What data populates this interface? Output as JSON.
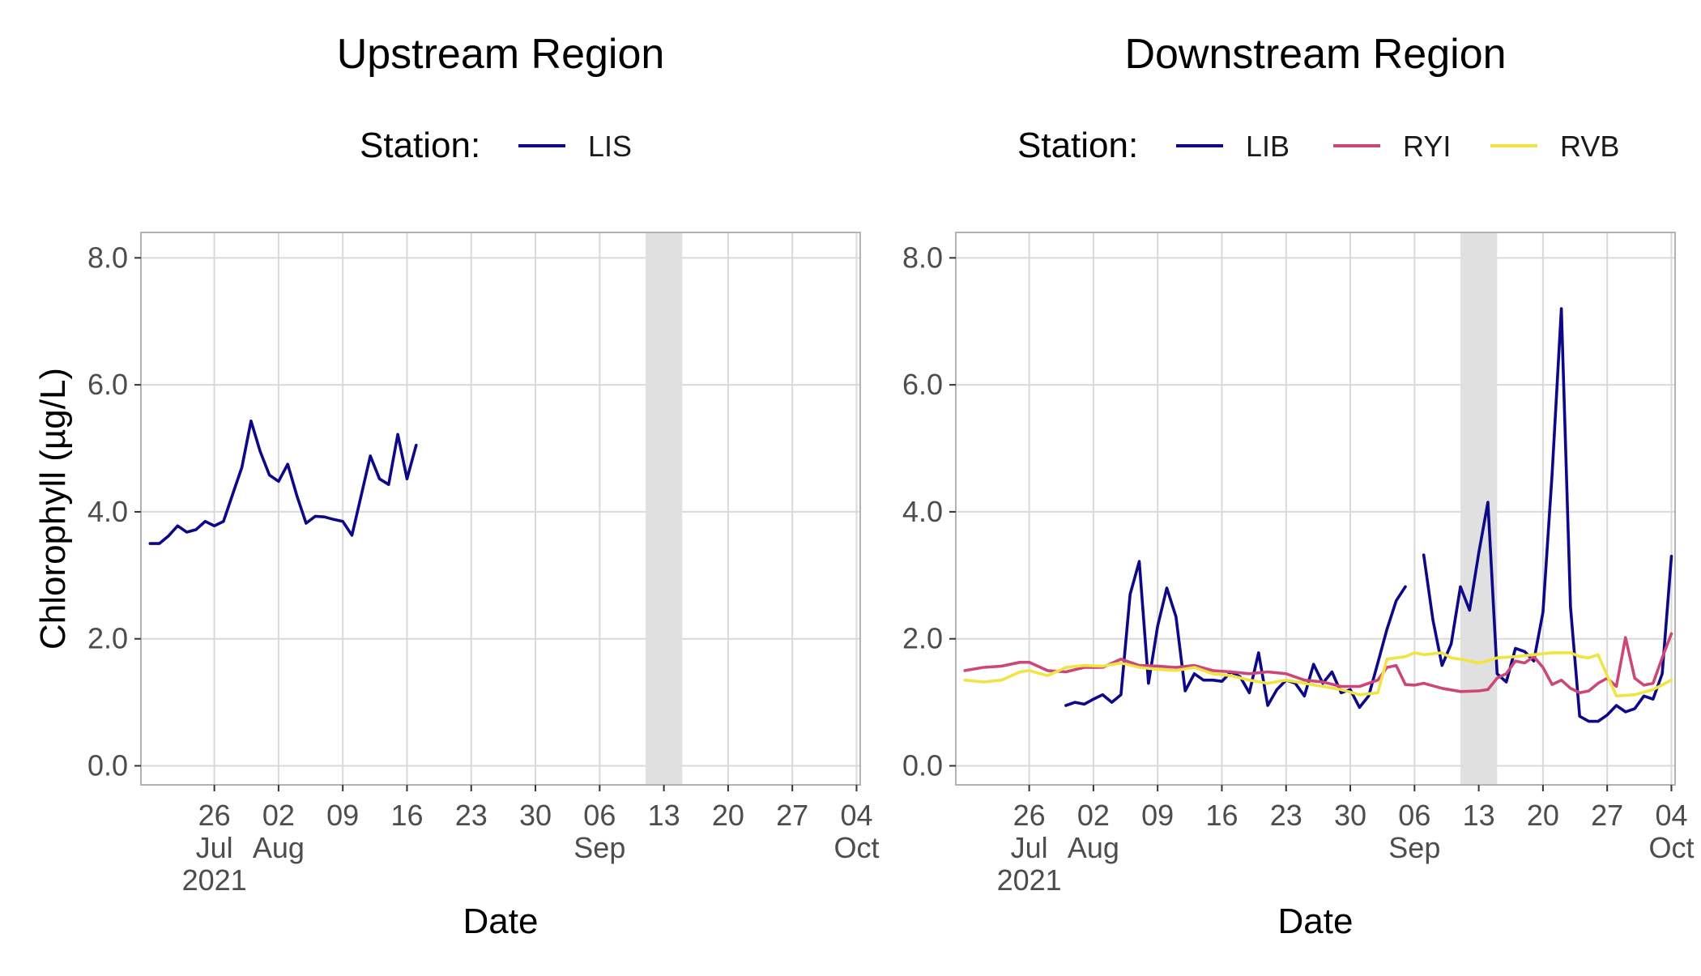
{
  "colors": {
    "LIS": "#0d0887",
    "LIB": "#0d0887",
    "RYI": "#cc4778",
    "RVB": "#f0e442",
    "shade": "#e0e0e0",
    "grid": "#d9d9d9",
    "border": "#b3b3b3"
  },
  "legend_title": "Station:",
  "shared": {
    "ylabel": "Chlorophyll (µg/L)",
    "xlabel": "Date",
    "y_ticks": [
      "0.0",
      "2.0",
      "4.0",
      "6.0",
      "8.0"
    ],
    "x_ticks": [
      {
        "day": "26",
        "month": "Jul",
        "year": "2021"
      },
      {
        "day": "02",
        "month": "Aug",
        "year": ""
      },
      {
        "day": "09",
        "month": "",
        "year": ""
      },
      {
        "day": "16",
        "month": "",
        "year": ""
      },
      {
        "day": "23",
        "month": "",
        "year": ""
      },
      {
        "day": "30",
        "month": "",
        "year": ""
      },
      {
        "day": "06",
        "month": "Sep",
        "year": ""
      },
      {
        "day": "13",
        "month": "",
        "year": ""
      },
      {
        "day": "20",
        "month": "",
        "year": ""
      },
      {
        "day": "27",
        "month": "",
        "year": ""
      },
      {
        "day": "04",
        "month": "Oct",
        "year": ""
      }
    ]
  },
  "chart_data": [
    {
      "type": "line",
      "title": "Upstream Region",
      "xlabel": "Date",
      "ylabel": "Chlorophyll (µg/L)",
      "xlim": [
        "2021-07-18",
        "2021-10-04"
      ],
      "ylim": [
        -0.3,
        8.4
      ],
      "shaded_range": [
        "2021-09-11",
        "2021-09-15"
      ],
      "grid": true,
      "legend_position": "top",
      "series": [
        {
          "name": "LIS",
          "color": "#0d0887",
          "points": [
            [
              "2021-07-19",
              3.5
            ],
            [
              "2021-07-20",
              3.5
            ],
            [
              "2021-07-21",
              3.62
            ],
            [
              "2021-07-22",
              3.78
            ],
            [
              "2021-07-23",
              3.68
            ],
            [
              "2021-07-24",
              3.72
            ],
            [
              "2021-07-25",
              3.85
            ],
            [
              "2021-07-26",
              3.78
            ],
            [
              "2021-07-27",
              3.85
            ],
            [
              "2021-07-28",
              4.28
            ],
            [
              "2021-07-29",
              4.7
            ],
            [
              "2021-07-30",
              5.43
            ],
            [
              "2021-07-31",
              4.95
            ],
            [
              "2021-08-01",
              4.58
            ],
            [
              "2021-08-02",
              4.48
            ],
            [
              "2021-08-03",
              4.75
            ],
            [
              "2021-08-04",
              4.25
            ],
            [
              "2021-08-05",
              3.82
            ],
            [
              "2021-08-06",
              3.93
            ],
            [
              "2021-08-07",
              3.92
            ],
            [
              "2021-08-08",
              3.88
            ],
            [
              "2021-08-09",
              3.85
            ],
            [
              "2021-08-10",
              3.63
            ],
            [
              "2021-08-11",
              4.25
            ],
            [
              "2021-08-12",
              4.88
            ],
            [
              "2021-08-13",
              4.52
            ],
            [
              "2021-08-14",
              4.43
            ],
            [
              "2021-08-15",
              5.22
            ],
            [
              "2021-08-16",
              4.52
            ],
            [
              "2021-08-17",
              5.05
            ]
          ]
        }
      ]
    },
    {
      "type": "line",
      "title": "Downstream Region",
      "xlabel": "Date",
      "ylabel": "",
      "xlim": [
        "2021-07-18",
        "2021-10-04"
      ],
      "ylim": [
        -0.3,
        8.4
      ],
      "shaded_range": [
        "2021-09-11",
        "2021-09-15"
      ],
      "grid": true,
      "legend_position": "top",
      "series": [
        {
          "name": "LIB",
          "color": "#0d0887",
          "segments": [
            [
              [
                "2021-07-30",
                0.95
              ],
              [
                "2021-07-31",
                1.0
              ],
              [
                "2021-08-01",
                0.97
              ],
              [
                "2021-08-02",
                1.05
              ],
              [
                "2021-08-03",
                1.12
              ],
              [
                "2021-08-04",
                1.0
              ],
              [
                "2021-08-05",
                1.12
              ],
              [
                "2021-08-06",
                2.7
              ],
              [
                "2021-08-07",
                3.22
              ],
              [
                "2021-08-08",
                1.3
              ],
              [
                "2021-08-09",
                2.2
              ],
              [
                "2021-08-10",
                2.8
              ],
              [
                "2021-08-11",
                2.35
              ],
              [
                "2021-08-12",
                1.18
              ],
              [
                "2021-08-13",
                1.45
              ],
              [
                "2021-08-14",
                1.35
              ],
              [
                "2021-08-15",
                1.35
              ],
              [
                "2021-08-16",
                1.33
              ],
              [
                "2021-08-17",
                1.48
              ],
              [
                "2021-08-18",
                1.4
              ],
              [
                "2021-08-19",
                1.15
              ],
              [
                "2021-08-20",
                1.78
              ],
              [
                "2021-08-21",
                0.95
              ],
              [
                "2021-08-22",
                1.2
              ],
              [
                "2021-08-23",
                1.35
              ],
              [
                "2021-08-24",
                1.3
              ],
              [
                "2021-08-25",
                1.1
              ],
              [
                "2021-08-26",
                1.6
              ],
              [
                "2021-08-27",
                1.3
              ],
              [
                "2021-08-28",
                1.48
              ],
              [
                "2021-08-29",
                1.15
              ],
              [
                "2021-08-30",
                1.2
              ],
              [
                "2021-08-31",
                0.92
              ],
              [
                "2021-09-01",
                1.1
              ],
              [
                "2021-09-02",
                1.62
              ],
              [
                "2021-09-03",
                2.15
              ],
              [
                "2021-09-04",
                2.6
              ],
              [
                "2021-09-05",
                2.82
              ]
            ],
            [
              [
                "2021-09-07",
                3.32
              ],
              [
                "2021-09-08",
                2.3
              ],
              [
                "2021-09-09",
                1.58
              ],
              [
                "2021-09-10",
                1.92
              ],
              [
                "2021-09-11",
                2.82
              ],
              [
                "2021-09-12",
                2.45
              ],
              [
                "2021-09-13",
                3.35
              ],
              [
                "2021-09-14",
                4.15
              ],
              [
                "2021-09-15",
                1.45
              ],
              [
                "2021-09-16",
                1.32
              ],
              [
                "2021-09-17",
                1.85
              ],
              [
                "2021-09-18",
                1.8
              ],
              [
                "2021-09-19",
                1.65
              ],
              [
                "2021-09-20",
                2.42
              ],
              [
                "2021-09-21",
                4.6
              ],
              [
                "2021-09-22",
                7.2
              ],
              [
                "2021-09-23",
                2.5
              ],
              [
                "2021-09-24",
                0.78
              ],
              [
                "2021-09-25",
                0.7
              ],
              [
                "2021-09-26",
                0.7
              ],
              [
                "2021-09-27",
                0.8
              ],
              [
                "2021-09-28",
                0.95
              ],
              [
                "2021-09-29",
                0.85
              ],
              [
                "2021-09-30",
                0.9
              ],
              [
                "2021-10-01",
                1.1
              ],
              [
                "2021-10-02",
                1.05
              ],
              [
                "2021-10-03",
                1.45
              ],
              [
                "2021-10-04",
                3.3
              ]
            ]
          ]
        },
        {
          "name": "RYI",
          "color": "#cc4778",
          "points": [
            [
              "2021-07-19",
              1.5
            ],
            [
              "2021-07-21",
              1.55
            ],
            [
              "2021-07-23",
              1.57
            ],
            [
              "2021-07-25",
              1.63
            ],
            [
              "2021-07-26",
              1.63
            ],
            [
              "2021-07-28",
              1.5
            ],
            [
              "2021-07-30",
              1.48
            ],
            [
              "2021-08-01",
              1.55
            ],
            [
              "2021-08-03",
              1.55
            ],
            [
              "2021-08-05",
              1.68
            ],
            [
              "2021-08-07",
              1.58
            ],
            [
              "2021-08-09",
              1.57
            ],
            [
              "2021-08-11",
              1.55
            ],
            [
              "2021-08-13",
              1.58
            ],
            [
              "2021-08-15",
              1.5
            ],
            [
              "2021-08-17",
              1.48
            ],
            [
              "2021-08-19",
              1.45
            ],
            [
              "2021-08-21",
              1.48
            ],
            [
              "2021-08-23",
              1.45
            ],
            [
              "2021-08-25",
              1.35
            ],
            [
              "2021-08-27",
              1.32
            ],
            [
              "2021-08-29",
              1.25
            ],
            [
              "2021-08-31",
              1.25
            ],
            [
              "2021-09-02",
              1.35
            ],
            [
              "2021-09-03",
              1.55
            ],
            [
              "2021-09-04",
              1.58
            ],
            [
              "2021-09-05",
              1.28
            ],
            [
              "2021-09-06",
              1.27
            ],
            [
              "2021-09-07",
              1.3
            ],
            [
              "2021-09-09",
              1.22
            ],
            [
              "2021-09-11",
              1.17
            ],
            [
              "2021-09-13",
              1.18
            ],
            [
              "2021-09-14",
              1.2
            ],
            [
              "2021-09-15",
              1.38
            ],
            [
              "2021-09-16",
              1.45
            ],
            [
              "2021-09-17",
              1.65
            ],
            [
              "2021-09-18",
              1.62
            ],
            [
              "2021-09-19",
              1.72
            ],
            [
              "2021-09-20",
              1.55
            ],
            [
              "2021-09-21",
              1.28
            ],
            [
              "2021-09-22",
              1.35
            ],
            [
              "2021-09-23",
              1.22
            ],
            [
              "2021-09-24",
              1.15
            ],
            [
              "2021-09-25",
              1.18
            ],
            [
              "2021-09-26",
              1.3
            ],
            [
              "2021-09-27",
              1.38
            ],
            [
              "2021-09-28",
              1.25
            ],
            [
              "2021-09-29",
              2.02
            ],
            [
              "2021-09-30",
              1.38
            ],
            [
              "2021-10-01",
              1.27
            ],
            [
              "2021-10-02",
              1.3
            ],
            [
              "2021-10-03",
              1.7
            ],
            [
              "2021-10-04",
              2.08
            ]
          ]
        },
        {
          "name": "RVB",
          "color": "#f0e442",
          "points": [
            [
              "2021-07-19",
              1.35
            ],
            [
              "2021-07-21",
              1.32
            ],
            [
              "2021-07-23",
              1.35
            ],
            [
              "2021-07-25",
              1.48
            ],
            [
              "2021-07-26",
              1.5
            ],
            [
              "2021-07-28",
              1.42
            ],
            [
              "2021-07-30",
              1.55
            ],
            [
              "2021-08-01",
              1.58
            ],
            [
              "2021-08-03",
              1.57
            ],
            [
              "2021-08-05",
              1.62
            ],
            [
              "2021-08-07",
              1.55
            ],
            [
              "2021-08-09",
              1.52
            ],
            [
              "2021-08-11",
              1.5
            ],
            [
              "2021-08-13",
              1.55
            ],
            [
              "2021-08-15",
              1.45
            ],
            [
              "2021-08-17",
              1.42
            ],
            [
              "2021-08-19",
              1.35
            ],
            [
              "2021-08-21",
              1.3
            ],
            [
              "2021-08-23",
              1.35
            ],
            [
              "2021-08-25",
              1.3
            ],
            [
              "2021-08-27",
              1.25
            ],
            [
              "2021-08-29",
              1.2
            ],
            [
              "2021-08-31",
              1.12
            ],
            [
              "2021-09-02",
              1.15
            ],
            [
              "2021-09-03",
              1.68
            ],
            [
              "2021-09-05",
              1.72
            ],
            [
              "2021-09-06",
              1.78
            ],
            [
              "2021-09-07",
              1.75
            ],
            [
              "2021-09-09",
              1.78
            ],
            [
              "2021-09-10",
              1.7
            ],
            [
              "2021-09-11",
              1.68
            ],
            [
              "2021-09-13",
              1.62
            ],
            [
              "2021-09-14",
              1.65
            ],
            [
              "2021-09-15",
              1.7
            ],
            [
              "2021-09-17",
              1.72
            ],
            [
              "2021-09-19",
              1.75
            ],
            [
              "2021-09-21",
              1.78
            ],
            [
              "2021-09-23",
              1.78
            ],
            [
              "2021-09-24",
              1.72
            ],
            [
              "2021-09-25",
              1.7
            ],
            [
              "2021-09-26",
              1.75
            ],
            [
              "2021-09-27",
              1.42
            ],
            [
              "2021-09-28",
              1.1
            ],
            [
              "2021-09-30",
              1.12
            ],
            [
              "2021-10-02",
              1.2
            ],
            [
              "2021-10-04",
              1.35
            ]
          ]
        }
      ]
    }
  ]
}
